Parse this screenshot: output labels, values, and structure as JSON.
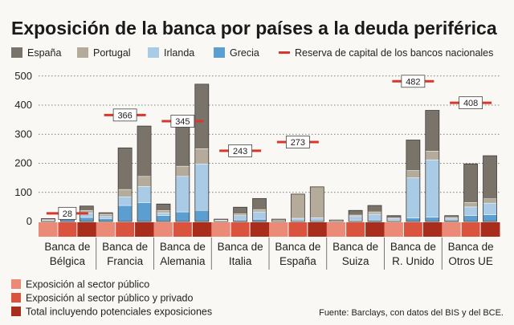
{
  "chart_data": {
    "type": "bar",
    "title": "Exposición de la banca por países a la deuda periférica",
    "source": "Fuente: Barclays, con datos del BIS y del BCE.",
    "ylim": [
      0,
      500
    ],
    "yticks": [
      0,
      100,
      200,
      300,
      400,
      500
    ],
    "grid": true,
    "legend_position": "top",
    "stack_series": [
      {
        "name": "España",
        "color": "#7a736a"
      },
      {
        "name": "Portugal",
        "color": "#b5ab9b"
      },
      {
        "name": "Irlanda",
        "color": "#a9cbe6"
      },
      {
        "name": "Grecia",
        "color": "#5b9fd0"
      }
    ],
    "reserve_series": {
      "name": "Reserva de capital de los bancos nacionales",
      "color": "#d7372c"
    },
    "exposure_types": [
      {
        "name": "Exposición al sector público",
        "color": "#ec8a78"
      },
      {
        "name": "Exposición al sector público y privado",
        "color": "#d9533e"
      },
      {
        "name": "Total incluyendo potenciales exposiciones",
        "color": "#a92d1c"
      }
    ],
    "groups": [
      {
        "name": "Banca de Bélgica",
        "reserve": 28,
        "bars": [
          {
            "Grecia": 3,
            "Irlanda": 1,
            "Portugal": 2,
            "España": 4
          },
          {
            "Grecia": 10,
            "Irlanda": 9,
            "Portugal": 5,
            "España": 10
          },
          {
            "Grecia": 14,
            "Irlanda": 16,
            "Portugal": 8,
            "España": 15
          }
        ]
      },
      {
        "name": "Banca de Francia",
        "reserve": 366,
        "bars": [
          {
            "Grecia": 10,
            "Irlanda": 7,
            "Portugal": 8,
            "España": 5
          },
          {
            "Grecia": 55,
            "Irlanda": 30,
            "Portugal": 25,
            "España": 143
          },
          {
            "Grecia": 65,
            "Irlanda": 55,
            "Portugal": 35,
            "España": 173
          }
        ]
      },
      {
        "name": "Banca de Alemania",
        "reserve": 345,
        "bars": [
          {
            "Grecia": 20,
            "Irlanda": 10,
            "Portugal": 8,
            "España": 22
          },
          {
            "Grecia": 33,
            "Irlanda": 122,
            "Portugal": 35,
            "España": 135
          },
          {
            "Grecia": 38,
            "Irlanda": 160,
            "Portugal": 52,
            "España": 222
          }
        ]
      },
      {
        "name": "Banca de Italia",
        "reserve": 243,
        "bars": [
          {
            "Grecia": 2,
            "Irlanda": 2,
            "Portugal": 1,
            "España": 3
          },
          {
            "Grecia": 5,
            "Irlanda": 15,
            "Portugal": 6,
            "España": 23
          },
          {
            "Grecia": 8,
            "Irlanda": 25,
            "Portugal": 8,
            "España": 38
          }
        ]
      },
      {
        "name": "Banca de España",
        "reserve": 273,
        "bars": [
          {
            "Grecia": 0,
            "Irlanda": 2,
            "Portugal": 6,
            "España": 0
          },
          {
            "Grecia": 1,
            "Irlanda": 10,
            "Portugal": 83,
            "España": 0
          },
          {
            "Grecia": 1,
            "Irlanda": 12,
            "Portugal": 106,
            "España": 0
          }
        ]
      },
      {
        "name": "Banca de Suiza",
        "reserve": null,
        "bars": [
          {
            "Grecia": 1,
            "Irlanda": 1,
            "Portugal": 1,
            "España": 2
          },
          {
            "Grecia": 3,
            "Irlanda": 14,
            "Portugal": 5,
            "España": 16
          },
          {
            "Grecia": 5,
            "Irlanda": 20,
            "Portugal": 8,
            "España": 22
          }
        ]
      },
      {
        "name": "Banca de R. Unido",
        "reserve": 482,
        "bars": [
          {
            "Grecia": 3,
            "Irlanda": 6,
            "Portugal": 3,
            "España": 8
          },
          {
            "Grecia": 12,
            "Irlanda": 138,
            "Portugal": 25,
            "España": 105
          },
          {
            "Grecia": 15,
            "Irlanda": 197,
            "Portugal": 30,
            "España": 140
          }
        ]
      },
      {
        "name": "Banca de Otros UE",
        "reserve": 408,
        "bars": [
          {
            "Grecia": 5,
            "Irlanda": 4,
            "Portugal": 5,
            "España": 6
          },
          {
            "Grecia": 20,
            "Irlanda": 30,
            "Portugal": 15,
            "España": 133
          },
          {
            "Grecia": 23,
            "Irlanda": 40,
            "Portugal": 15,
            "España": 148
          }
        ]
      }
    ]
  }
}
